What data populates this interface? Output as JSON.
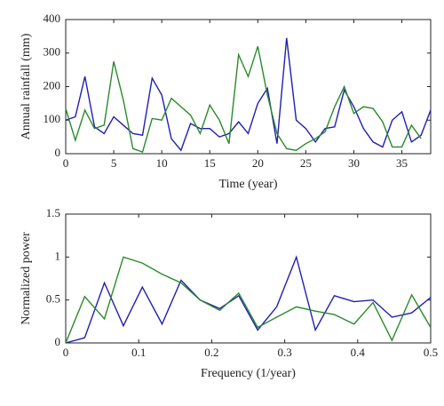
{
  "chart_data": [
    {
      "type": "line",
      "xlabel": "Time (year)",
      "ylabel": "Annual rainfall (mm)",
      "x": [
        0,
        1,
        2,
        3,
        4,
        5,
        6,
        7,
        8,
        9,
        10,
        11,
        12,
        13,
        14,
        15,
        16,
        17,
        18,
        19,
        20,
        21,
        22,
        23,
        24,
        25,
        26,
        27,
        28,
        29,
        30,
        31,
        32,
        33,
        34,
        35,
        36,
        37,
        38
      ],
      "series": [
        {
          "color": "#1f1fb4",
          "values": [
            100,
            110,
            230,
            80,
            60,
            110,
            85,
            60,
            55,
            225,
            175,
            45,
            10,
            90,
            75,
            75,
            50,
            60,
            95,
            60,
            150,
            195,
            30,
            345,
            100,
            75,
            35,
            75,
            80,
            190,
            140,
            75,
            35,
            20,
            100,
            125,
            35,
            55,
            130
          ]
        },
        {
          "color": "#2a8a2a",
          "values": [
            135,
            40,
            130,
            75,
            85,
            275,
            160,
            15,
            5,
            105,
            100,
            165,
            140,
            115,
            60,
            145,
            100,
            30,
            295,
            230,
            320,
            175,
            60,
            15,
            10,
            30,
            45,
            65,
            140,
            200,
            120,
            140,
            135,
            95,
            20,
            20,
            85,
            45,
            null
          ]
        }
      ],
      "xlim": [
        0,
        38
      ],
      "xticks": [
        0,
        5,
        10,
        15,
        20,
        25,
        30,
        35
      ],
      "ylim": [
        0,
        400
      ],
      "yticks": [
        0,
        100,
        200,
        300,
        400
      ]
    },
    {
      "type": "line",
      "xlabel": "Frequency (1/year)",
      "ylabel": "Normalized power",
      "x": [
        0,
        0.026,
        0.053,
        0.079,
        0.105,
        0.132,
        0.158,
        0.184,
        0.211,
        0.237,
        0.263,
        0.289,
        0.316,
        0.342,
        0.368,
        0.395,
        0.421,
        0.447,
        0.474,
        0.5
      ],
      "series": [
        {
          "color": "#1f1fb4",
          "values": [
            0,
            0.06,
            0.7,
            0.2,
            0.65,
            0.22,
            0.73,
            0.5,
            0.4,
            0.55,
            0.15,
            0.42,
            1.0,
            0.15,
            0.55,
            0.48,
            0.5,
            0.3,
            0.35,
            0.53
          ]
        },
        {
          "color": "#2a8a2a",
          "values": [
            0,
            0.54,
            0.28,
            1.0,
            0.93,
            0.8,
            0.7,
            0.5,
            0.38,
            0.58,
            0.18,
            0.3,
            0.42,
            0.37,
            0.33,
            0.22,
            0.47,
            0.03,
            0.56,
            0.18
          ]
        }
      ],
      "xlim": [
        0,
        0.5
      ],
      "xticks": [
        0,
        0.1,
        0.2,
        0.3,
        0.4,
        0.5
      ],
      "ylim": [
        0,
        1.5
      ],
      "yticks": [
        0,
        0.5,
        1,
        1.5
      ]
    }
  ]
}
